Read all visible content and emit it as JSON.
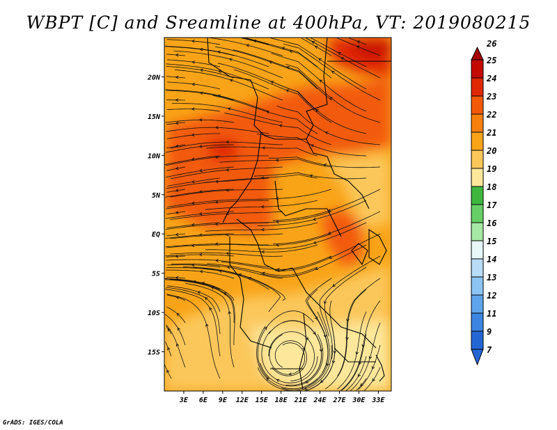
{
  "title": "WBPT [C] and Sreamline at 400hPa, VT: 2019080215",
  "credit": "GrADS: IGES/COLA",
  "map": {
    "lon_range": [
      0,
      35
    ],
    "lat_range": [
      -20,
      25
    ],
    "lon_ticks": [
      "3E",
      "6E",
      "9E",
      "12E",
      "15E",
      "18E",
      "21E",
      "24E",
      "27E",
      "30E",
      "33E"
    ],
    "lat_ticks": [
      "20N",
      "15N",
      "10N",
      "5N",
      "EQ",
      "5S",
      "10S",
      "15S"
    ]
  },
  "colorbar": {
    "levels": [
      "26",
      "25",
      "24",
      "23",
      "22",
      "21",
      "20",
      "19",
      "18",
      "17",
      "16",
      "15",
      "14",
      "13",
      "12",
      "11",
      "9",
      "7"
    ],
    "colors": [
      "#a50000",
      "#c40a00",
      "#e02800",
      "#f25a0a",
      "#f7800c",
      "#f9a418",
      "#fbc75a",
      "#fde79a",
      "#3fb73f",
      "#66d066",
      "#a6e8a6",
      "#e8f8f8",
      "#b8dcf8",
      "#8cc4f4",
      "#5ea4ec",
      "#3c86e2",
      "#2466d4"
    ]
  }
}
